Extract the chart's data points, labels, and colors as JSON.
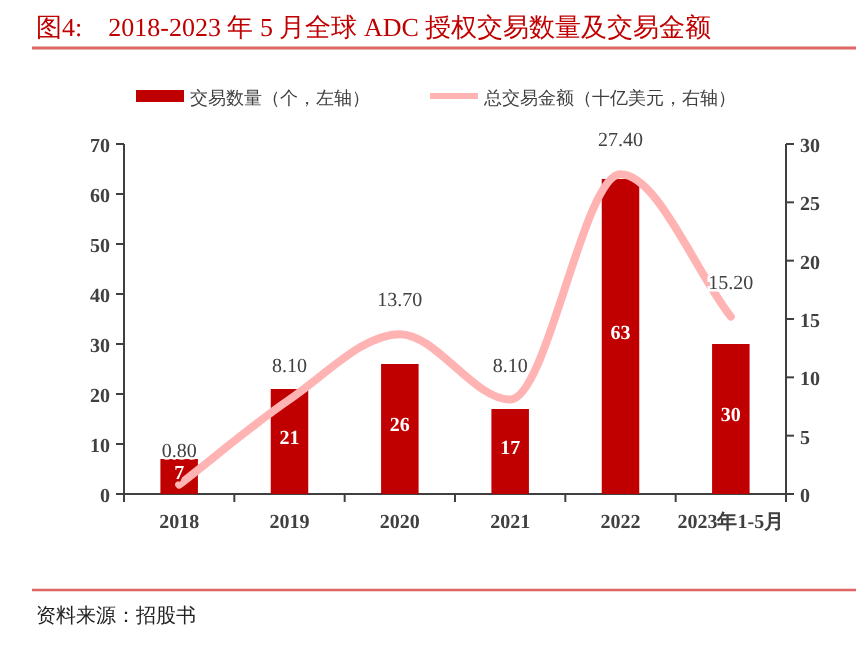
{
  "chart_data": {
    "type": "bar",
    "title": "图4:　2018-2023 年 5 月全球 ADC 授权交易数量及交易金额",
    "categories": [
      "2018",
      "2019",
      "2020",
      "2021",
      "2022",
      "2023年1-5月"
    ],
    "series": [
      {
        "name": "交易数量（个，左轴）",
        "color": "#c00000",
        "values": [
          7,
          21,
          26,
          17,
          63,
          30
        ],
        "value_labels": [
          "7",
          "21",
          "26",
          "17",
          "63",
          "30"
        ]
      },
      {
        "name": "总交易金额（十亿美元，右轴）",
        "type": "line",
        "axis": "y2",
        "color": "#ffb3b3",
        "values": [
          0.8,
          8.1,
          13.7,
          8.1,
          27.4,
          15.2
        ],
        "value_labels": [
          "0.80",
          "8.10",
          "13.70",
          "8.10",
          "27.40",
          "15.20"
        ]
      }
    ],
    "ylim": [
      0,
      70
    ],
    "yticks": [
      0,
      10,
      20,
      30,
      40,
      50,
      60,
      70
    ],
    "y2lim": [
      0,
      30
    ],
    "y2ticks": [
      0,
      5,
      10,
      15,
      20,
      25,
      30
    ],
    "legend": "top",
    "grid": false,
    "annotations": [
      "资料来源：招股书"
    ]
  }
}
